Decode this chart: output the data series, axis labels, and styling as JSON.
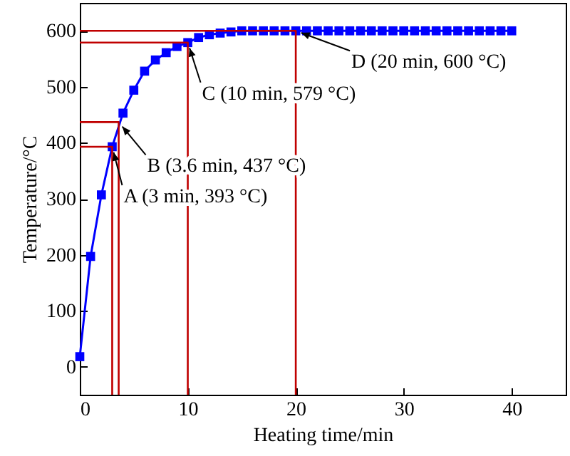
{
  "chart_data": {
    "type": "line",
    "xlabel": "Heating time/min",
    "ylabel": "Temperature/°C",
    "xlim": [
      0,
      45
    ],
    "ylim": [
      -50,
      650
    ],
    "xticks": [
      0,
      10,
      20,
      30,
      40
    ],
    "yticks": [
      0,
      100,
      200,
      300,
      400,
      500,
      600
    ],
    "grid": false,
    "marker": "square",
    "series": [
      {
        "color": "#0000ff",
        "x": [
          0,
          1,
          2,
          3,
          4,
          5,
          6,
          7,
          8,
          9,
          10,
          11,
          12,
          13,
          14,
          15,
          16,
          17,
          18,
          19,
          20,
          21,
          22,
          23,
          24,
          25,
          26,
          27,
          28,
          29,
          30,
          31,
          32,
          33,
          34,
          35,
          36,
          37,
          38,
          39,
          40
        ],
        "values": [
          18,
          197,
          307,
          393,
          453,
          494,
          528,
          548,
          561,
          572,
          579,
          588,
          593,
          596,
          598,
          600,
          600,
          600,
          600,
          600,
          600,
          600,
          600,
          600,
          600,
          600,
          600,
          600,
          600,
          600,
          600,
          600,
          600,
          600,
          600,
          600,
          600,
          600,
          600,
          600,
          600
        ]
      },
      {
        "color": "#c00000",
        "marker": "none",
        "x": [
          0,
          3,
          3
        ],
        "values": [
          393,
          393,
          -50
        ]
      },
      {
        "color": "#c00000",
        "marker": "none",
        "x": [
          0,
          3.6,
          3.6
        ],
        "values": [
          437,
          437,
          -50
        ]
      },
      {
        "color": "#c00000",
        "marker": "none",
        "x": [
          0,
          10,
          10
        ],
        "values": [
          579,
          579,
          -50
        ]
      },
      {
        "color": "#c00000",
        "marker": "none",
        "x": [
          0,
          20,
          20
        ],
        "values": [
          600,
          600,
          -50
        ]
      }
    ],
    "annotations": [
      {
        "text": "A (3 min, 393 °C)",
        "x": 3,
        "y": 393
      },
      {
        "text": "B (3.6 min, 437 °C)",
        "x": 3.6,
        "y": 437
      },
      {
        "text": "C (10 min, 579 °C)",
        "x": 10,
        "y": 579
      },
      {
        "text": "D (20 min, 600 °C)",
        "x": 20,
        "y": 600
      }
    ]
  }
}
